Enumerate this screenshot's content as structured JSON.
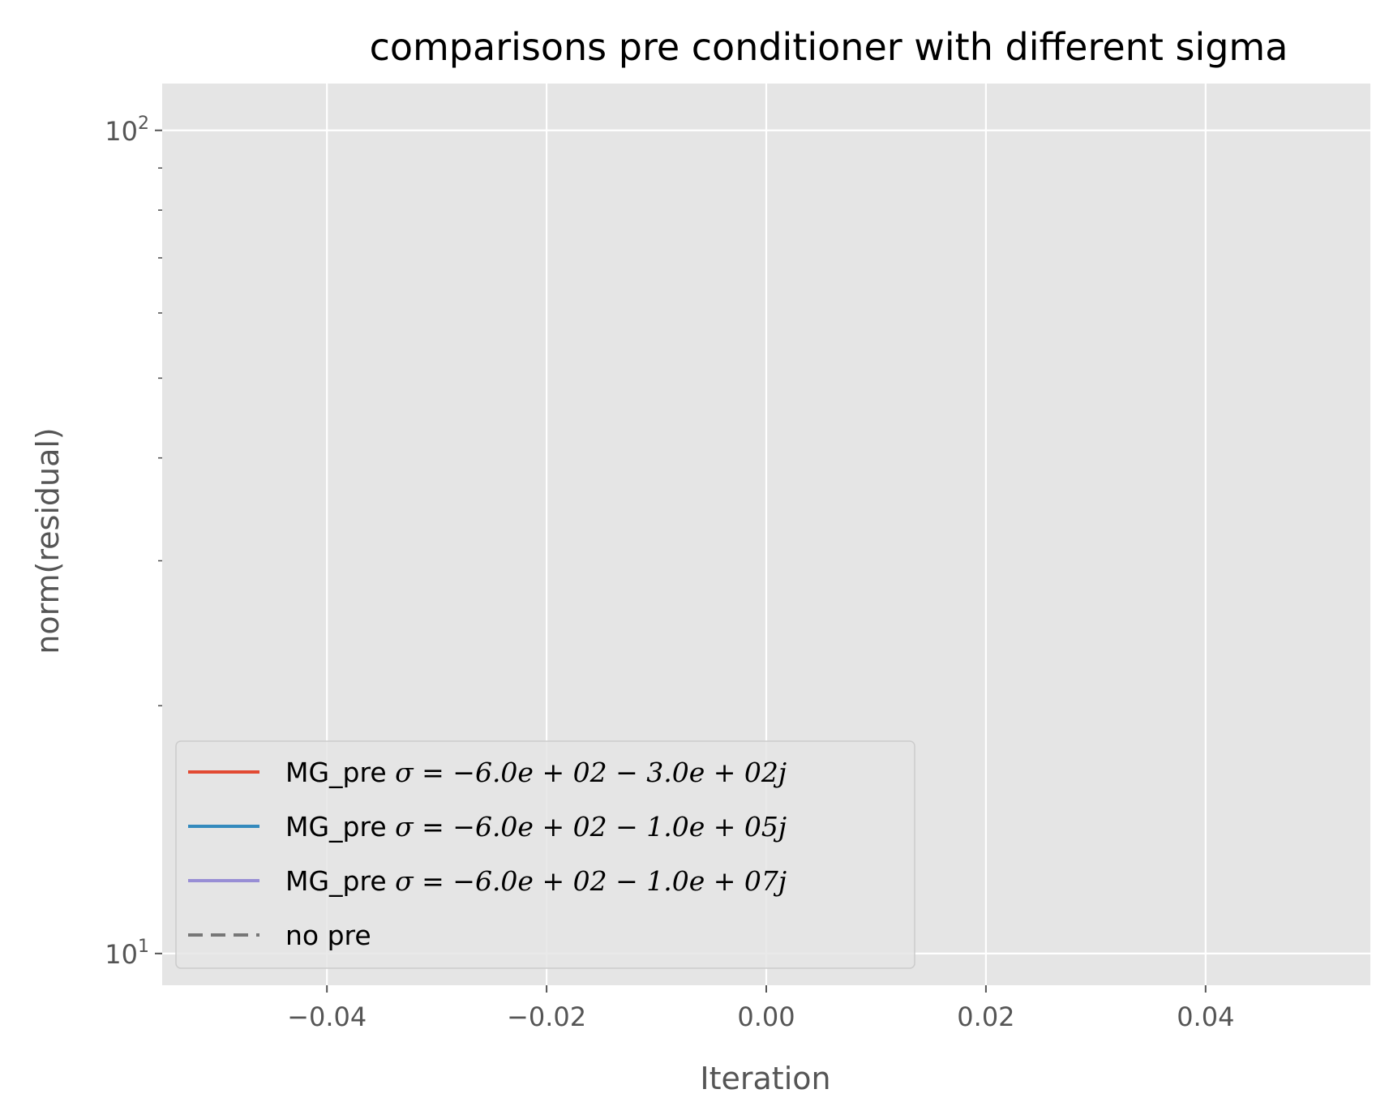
{
  "chart_data": {
    "type": "line",
    "title": "comparisons pre conditioner with different sigma",
    "xlabel": "Iteration",
    "ylabel": "norm(residual)",
    "xlim": [
      -0.055,
      0.055
    ],
    "ylim": [
      9.15,
      114
    ],
    "y_scale": "log",
    "x_ticks": [
      -0.04,
      -0.02,
      0.0,
      0.02,
      0.04
    ],
    "x_tick_labels": [
      "−0.04",
      "−0.02",
      "0.00",
      "0.02",
      "0.04"
    ],
    "y_major_ticks": [
      10,
      100
    ],
    "y_tick_labels": [
      {
        "base": "10",
        "exp": "1"
      },
      {
        "base": "10",
        "exp": "2"
      }
    ],
    "y_minor_ticks": [
      20,
      30,
      40,
      50,
      60,
      70,
      80,
      90
    ],
    "grid": true,
    "legend_position": "lower-left",
    "style": "ggplot",
    "background": "#e5e5e5",
    "series": [
      {
        "name": "MG_pre σ = −6.0e + 02 − 3.0e + 02j",
        "label_prefix": "MG_pre ",
        "label_math": "σ = −6.0e + 02 − 3.0e + 02j",
        "color": "#e24a33",
        "dash": "solid",
        "x": [],
        "y": []
      },
      {
        "name": "MG_pre σ = −6.0e + 02 − 1.0e + 05j",
        "label_prefix": "MG_pre ",
        "label_math": "σ = −6.0e + 02 − 1.0e + 05j",
        "color": "#348abd",
        "dash": "solid",
        "x": [],
        "y": []
      },
      {
        "name": "MG_pre σ = −6.0e + 02 − 1.0e + 07j",
        "label_prefix": "MG_pre ",
        "label_math": "σ = −6.0e + 02 − 1.0e + 07j",
        "color": "#988ed5",
        "dash": "solid",
        "x": [],
        "y": []
      },
      {
        "name": "no pre",
        "label_prefix": "no pre",
        "label_math": "",
        "color": "#777777",
        "dash": "dashed",
        "x": [],
        "y": []
      }
    ]
  }
}
